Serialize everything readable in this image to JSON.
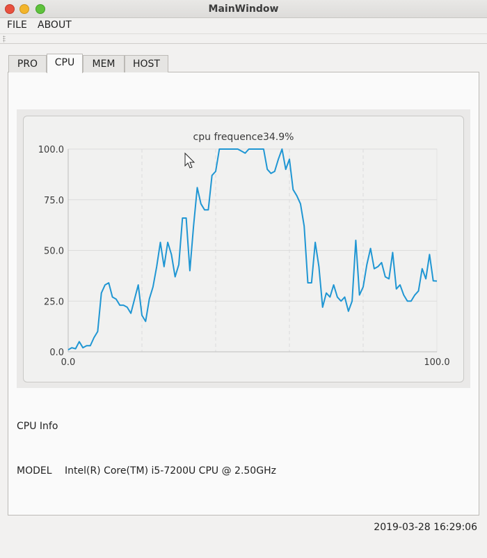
{
  "window": {
    "title": "MainWindow"
  },
  "menu": {
    "file": "FILE",
    "about": "ABOUT"
  },
  "tabs": [
    {
      "label": "PRO",
      "active": false
    },
    {
      "label": "CPU",
      "active": true
    },
    {
      "label": "MEM",
      "active": false
    },
    {
      "label": "HOST",
      "active": false
    }
  ],
  "colors": {
    "series": "#1f96d3",
    "grid": "#dcdcdc",
    "close": "#e8513f",
    "minimize": "#f3b52b",
    "maximize": "#5fc23c"
  },
  "chart_data": {
    "type": "line",
    "title": "cpu frequence34.9%",
    "xlabel": "",
    "ylabel": "",
    "xlim": [
      0,
      100
    ],
    "ylim": [
      0,
      100
    ],
    "x_ticks": [
      "0.0",
      "100.0"
    ],
    "y_ticks": [
      "0.0",
      "25.0",
      "50.0",
      "75.0",
      "100.0"
    ],
    "grid": true,
    "legend": "none",
    "series": [
      {
        "x": [
          0,
          1,
          2,
          3,
          4,
          5,
          6,
          7,
          8,
          9,
          10,
          11,
          12,
          13,
          14,
          15,
          16,
          17,
          18,
          19,
          20,
          21,
          22,
          23,
          24,
          25,
          26,
          27,
          28,
          29,
          30,
          31,
          32,
          33,
          34,
          35,
          36,
          37,
          38,
          39,
          40,
          41,
          42,
          43,
          44,
          45,
          46,
          47,
          48,
          49,
          50,
          51,
          52,
          53,
          54,
          55,
          56,
          57,
          58,
          59,
          60,
          61,
          62,
          63,
          64,
          65,
          66,
          67,
          68,
          69,
          70,
          71,
          72,
          73,
          74,
          75,
          76,
          77,
          78,
          79,
          80,
          81,
          82,
          83,
          84,
          85,
          86,
          87,
          88,
          89,
          90,
          91,
          92,
          93,
          94,
          95,
          96,
          97,
          98,
          99,
          100
        ],
        "values": [
          1,
          2,
          1.5,
          5,
          2,
          3,
          3,
          7,
          10,
          29,
          33,
          34,
          27,
          26,
          23,
          23,
          22,
          19,
          26,
          33,
          18,
          15,
          26,
          32,
          42,
          54,
          42,
          54,
          48,
          37,
          43,
          66,
          66,
          40,
          62,
          81,
          73,
          70,
          70,
          87,
          89,
          100,
          100,
          100,
          100,
          100,
          100,
          99,
          98,
          100,
          100,
          100,
          100,
          100,
          90,
          88,
          89,
          95,
          100,
          90,
          95,
          80,
          77,
          73,
          62,
          34,
          34,
          54,
          42,
          22,
          29,
          27,
          33,
          27,
          25,
          27,
          20,
          25,
          55,
          28,
          32,
          43,
          51,
          41,
          42,
          44,
          37,
          36,
          49,
          31,
          33,
          28,
          25,
          25,
          28,
          30,
          41,
          36,
          48,
          35,
          34.9
        ]
      }
    ]
  },
  "cpu_info": {
    "heading": "CPU Info",
    "model_key": "MODEL",
    "model_value": "Intel(R) Core(TM) i5-7200U CPU @ 2.50GHz"
  },
  "status": {
    "time": "2019-03-28 16:29:06"
  }
}
